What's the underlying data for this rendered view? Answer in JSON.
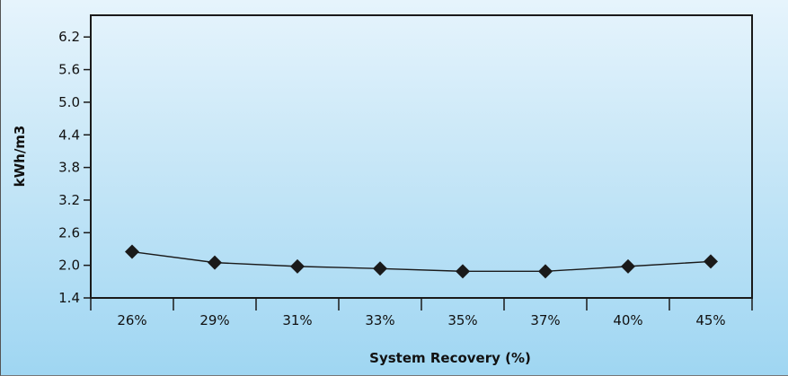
{
  "chart_data": {
    "type": "line",
    "title": "",
    "xlabel": "System Recovery (%)",
    "ylabel": "kWh/m3",
    "categories": [
      "26%",
      "29%",
      "31%",
      "33%",
      "35%",
      "37%",
      "40%",
      "45%"
    ],
    "series": [
      {
        "values": [
          2.25,
          2.05,
          1.98,
          1.94,
          1.89,
          1.89,
          1.98,
          2.07
        ],
        "marker": "diamond",
        "color": "#1a1a1a"
      }
    ],
    "y_ticks": [
      1.4,
      2.0,
      2.6,
      3.2,
      3.8,
      4.4,
      5.0,
      5.6,
      6.2
    ],
    "y_tick_labels": [
      "1.4",
      "2.0",
      "2.6",
      "3.2",
      "3.8",
      "4.4",
      "5.0",
      "5.6",
      "6.2"
    ],
    "ylim": [
      1.4,
      6.6
    ],
    "grid": false,
    "legend": "none",
    "colors": {
      "background_top": "#e6f4fc",
      "background_bottom": "#9fd6f2",
      "axis": "#1a1a1a",
      "series": "#1a1a1a"
    }
  }
}
